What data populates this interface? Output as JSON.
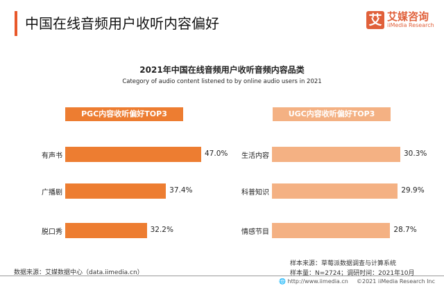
{
  "header": {
    "title": "中国在线音频用户收听内容偏好",
    "logo_cn": "艾媒咨询",
    "logo_en": "iiMedia Research",
    "logo_mark": "艾"
  },
  "chart_data": [
    {
      "type": "bar",
      "orientation": "horizontal",
      "title": "2021年中国在线音频用户收听音频内容品类",
      "subtitle": "Category of audio content listened to by online audio users in 2021",
      "panel_title": "PGC内容收听偏好TOP3",
      "categories": [
        "有声书",
        "广播剧",
        "脱口秀"
      ],
      "values": [
        47.0,
        37.4,
        32.2
      ],
      "unit": "%",
      "color": "#ED7D31"
    },
    {
      "type": "bar",
      "orientation": "horizontal",
      "panel_title": "UGC内容收听偏好TOP3",
      "categories": [
        "生活内容",
        "科普知识",
        "情感节目"
      ],
      "values": [
        30.3,
        29.9,
        28.7
      ],
      "unit": "%",
      "color": "#F4B183"
    }
  ],
  "footer": {
    "data_source": "数据来源：艾媒数据中心（data.iimedia.cn）",
    "sample_source": "样本来源：草莓派数据调查与计算系统",
    "sample_info": "样本量：N=2724；调研时间：2021年10月",
    "url": "http://www.iimedia.cn",
    "copyright": "©2021  iiMedia Research  Inc"
  }
}
